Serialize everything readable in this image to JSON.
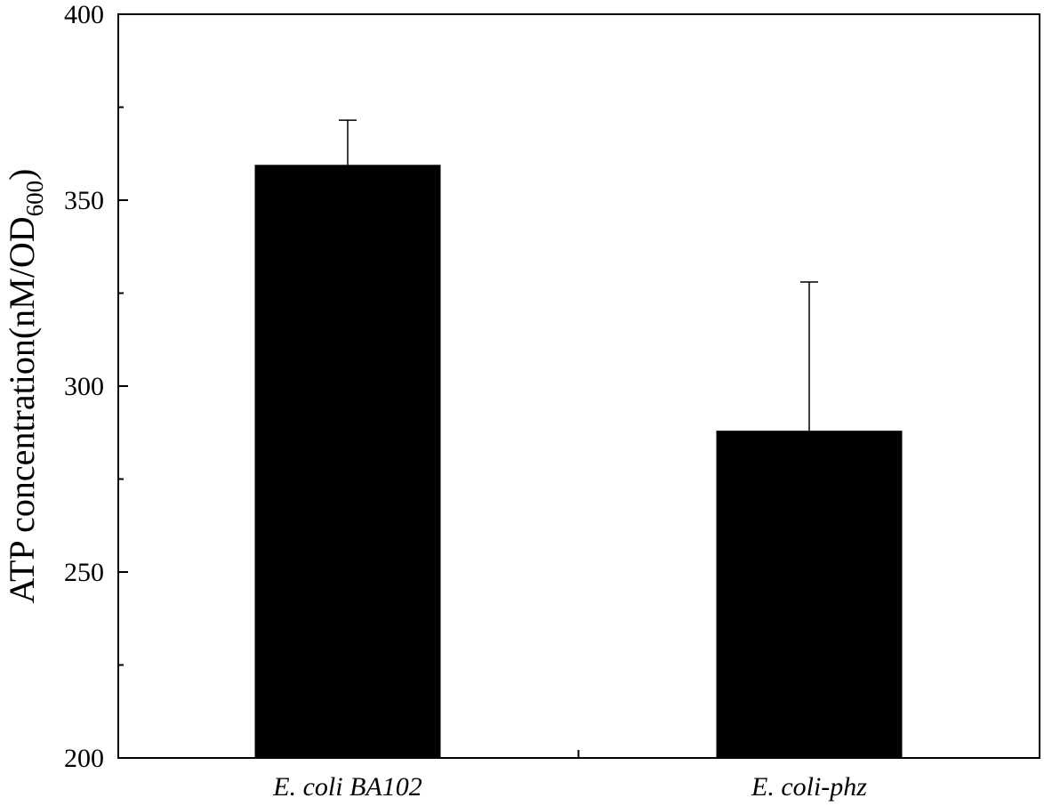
{
  "chart_data": {
    "type": "bar",
    "categories": [
      "E. coli BA102",
      "E. coli-phz"
    ],
    "series": [
      {
        "values": [
          359.5,
          288
        ],
        "errors": [
          12,
          40
        ]
      }
    ],
    "title": "",
    "xlabel": "",
    "ylabel": {
      "main": "ATP concentration(nM/OD",
      "subscript": "600",
      "suffix": ")"
    },
    "ylim": [
      200,
      400
    ],
    "yticks": [
      200,
      250,
      300,
      350,
      400
    ],
    "yminor_ticks": [
      225,
      275,
      325,
      375
    ],
    "grid": false,
    "colors": {
      "bar": "#000000",
      "axis": "#000000"
    }
  }
}
